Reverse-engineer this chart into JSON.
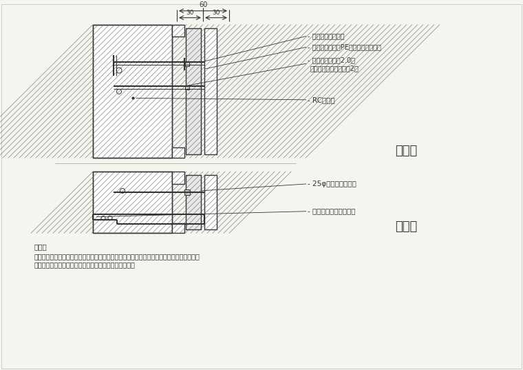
{
  "bg_color": "#f5f5f0",
  "line_color": "#333333",
  "hatch_color": "#555555",
  "title_text": "",
  "annotation1": "镀锌钢质螺丝锁闸",
  "annotation2": "填缝剂依缝发泡PE棒衬底（聚硫胶）",
  "annotation3": "不锈钢固定片厚2.0㎜",
  "annotation4": "膨胀螺栓固定每片石板2尺",
  "annotation5": "RC或红砖",
  "annotation6": "25φ不锈钢水平扣件",
  "annotation7": "不锈钢固定片详立剖面",
  "section_label1": "立剖面",
  "section_label2": "平剖面",
  "note_title": "说明：",
  "note_line1": "承商於石材施作前，应依石材分割尺寸配置镀锌钢架（防扩处理），并提送结构分析，经甲方",
  "note_line2": "审查後方得施作，其费用已含於标单项目，不另行计价。",
  "dim_total": "60",
  "dim_left": "30",
  "dim_right": "30"
}
